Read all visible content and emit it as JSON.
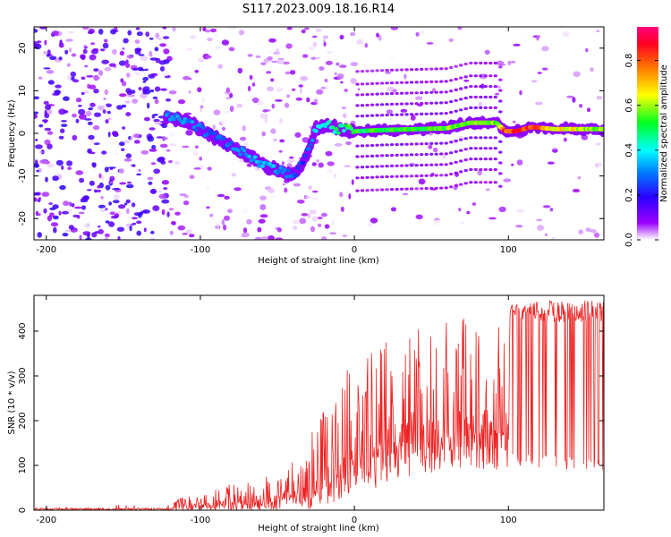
{
  "figure_title": "S117.2023.009.18.16.R14",
  "chart_data": [
    {
      "type": "heatmap",
      "title": "",
      "xlabel": "Height of straight line (km)",
      "ylabel": "Frequency (Hz)",
      "xlim": [
        -208,
        162
      ],
      "ylim": [
        -25,
        25
      ],
      "xticks": [
        -200,
        -100,
        0,
        100
      ],
      "yticks": [
        -20,
        -10,
        0,
        10,
        20
      ],
      "colorbar": {
        "label": "Normalized spectral amplitude",
        "range": [
          0,
          0.95
        ],
        "ticks": [
          0.0,
          0.2,
          0.4,
          0.6,
          0.8
        ],
        "colormap": [
          "#ffffff",
          "#9b00ff",
          "#2a00ff",
          "#0080ff",
          "#00ffff",
          "#00ff20",
          "#ffff00",
          "#ff8000",
          "#ff0020",
          "#ff0080"
        ]
      },
      "ridge": {
        "x": [
          -122,
          -110,
          -95,
          -85,
          -70,
          -55,
          -40,
          -32,
          -25,
          -18,
          -10,
          0,
          20,
          40,
          60,
          75,
          85,
          92,
          98,
          105,
          115,
          130,
          162
        ],
        "y": [
          4,
          3,
          0,
          -2,
          -5,
          -8,
          -10,
          -6,
          1,
          2,
          1,
          0.5,
          0.8,
          1,
          1.2,
          2.5,
          2.5,
          2.5,
          0.5,
          0.5,
          1.5,
          1,
          1
        ],
        "amplitude": [
          0.35,
          0.35,
          0.3,
          0.3,
          0.35,
          0.4,
          0.3,
          0.25,
          0.4,
          0.45,
          0.5,
          0.55,
          0.55,
          0.55,
          0.6,
          0.6,
          0.65,
          0.6,
          0.85,
          0.85,
          0.85,
          0.7,
          0.6
        ]
      },
      "harmonic_offsets_hz": [
        -14,
        -11,
        -8.5,
        -6,
        -3.5,
        3.5,
        6,
        8.5,
        11,
        14
      ]
    },
    {
      "type": "line",
      "title": "",
      "xlabel": "Height of straight line (km)",
      "ylabel": "SNR (10 * v/v)",
      "xlim": [
        -208,
        162
      ],
      "ylim": [
        0,
        480
      ],
      "xticks": [
        -200,
        -100,
        0,
        100
      ],
      "yticks": [
        0,
        100,
        200,
        300,
        400
      ],
      "color": "#ee2222",
      "envelope": {
        "x": [
          -208,
          -120,
          -110,
          -90,
          -60,
          -40,
          -30,
          -20,
          -10,
          0,
          10,
          20,
          30,
          40,
          60,
          80,
          95,
          100,
          101,
          130,
          162
        ],
        "lower": [
          0,
          0,
          0,
          0,
          0,
          0,
          0,
          2,
          10,
          30,
          40,
          55,
          70,
          80,
          88,
          88,
          85,
          85,
          430,
          420,
          420
        ],
        "upper": [
          12,
          12,
          35,
          55,
          70,
          110,
          160,
          240,
          330,
          380,
          390,
          410,
          420,
          420,
          430,
          430,
          420,
          420,
          460,
          470,
          470
        ]
      }
    }
  ]
}
